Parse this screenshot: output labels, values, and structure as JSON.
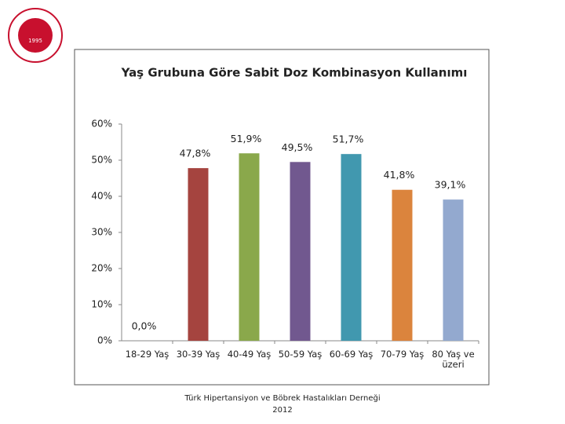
{
  "chart_data": {
    "type": "bar",
    "title": "Yaş Grubuna Göre Sabit Doz Kombinasyon Kullanımı",
    "categories": [
      "18-29 Yaş",
      "30-39 Yaş",
      "40-49 Yaş",
      "50-59 Yaş",
      "60-69 Yaş",
      "70-79 Yaş",
      "80 Yaş ve üzeri"
    ],
    "values": [
      0.0,
      47.8,
      51.9,
      49.5,
      51.7,
      41.8,
      39.1
    ],
    "value_labels": [
      "0,0%",
      "47,8%",
      "51,9%",
      "49,5%",
      "51,7%",
      "41,8%",
      "39,1%"
    ],
    "colors": [
      "#4f81bd",
      "#a5443f",
      "#8aa84b",
      "#71588f",
      "#4198af",
      "#db843d",
      "#93a9cf"
    ],
    "ylim": [
      0,
      60
    ],
    "yticks": [
      {
        "value": 0,
        "label": "0%"
      },
      {
        "value": 10,
        "label": "10%"
      },
      {
        "value": 20,
        "label": "20%"
      },
      {
        "value": 30,
        "label": "30%"
      },
      {
        "value": 40,
        "label": "40%"
      },
      {
        "value": 50,
        "label": "50%"
      },
      {
        "value": 60,
        "label": "60%"
      }
    ],
    "grid": false
  },
  "logo": {
    "year": "1995"
  },
  "footer": {
    "line1": "Türk Hipertansiyon ve Böbrek Hastalıkları Derneği",
    "line2": "2012"
  }
}
